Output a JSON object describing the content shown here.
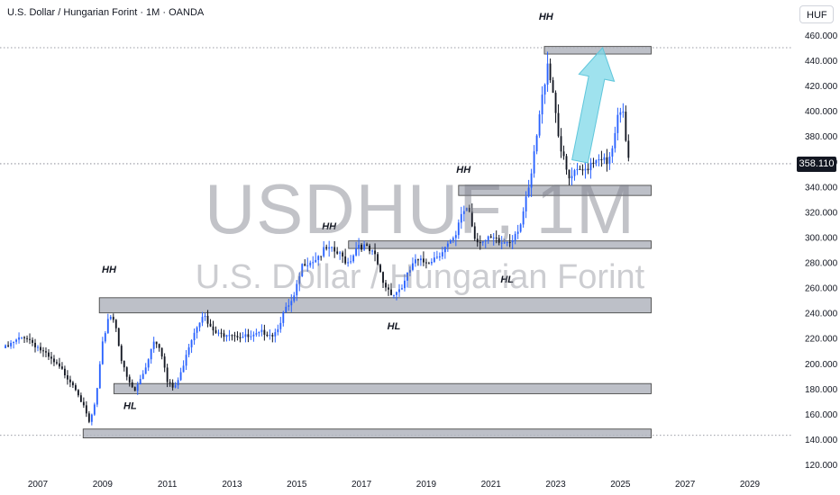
{
  "header": {
    "title": "U.S. Dollar / Hungarian Forint · 1M · OANDA",
    "currency": "HUF"
  },
  "watermark": {
    "symbol": "USDHUF, 1M",
    "name": "U.S. Dollar / Hungarian Forint"
  },
  "price_label": "358.110",
  "colors": {
    "up": "#2962ff",
    "down": "#131722",
    "zone_fill": "#b2b5be",
    "zone_stroke": "#4a4a4a",
    "arrow": "#7fd8e8"
  },
  "chart_data": {
    "type": "candlestick",
    "title": "U.S. Dollar / Hungarian Forint · 1M · OANDA",
    "xlabel": "",
    "ylabel": "",
    "x_ticks": [
      "2007",
      "2009",
      "2011",
      "2013",
      "2015",
      "2017",
      "2019",
      "2021",
      "2023",
      "2025",
      "2027",
      "2029"
    ],
    "y_ticks": [
      "460.000",
      "440.000",
      "420.000",
      "400.000",
      "380.000",
      "360.000",
      "340.000",
      "320.000",
      "300.000",
      "280.000",
      "260.000",
      "240.000",
      "220.000",
      "200.000",
      "180.000",
      "160.000",
      "140.000",
      "120.000"
    ],
    "ylim": [
      114,
      468
    ],
    "xlim": [
      2005.9,
      2030.1
    ],
    "last_price": 358.11,
    "dotted_levels": [
      450,
      358.11,
      143
    ],
    "anchor_path": [
      [
        2006.0,
        212
      ],
      [
        2006.6,
        222
      ],
      [
        2007.0,
        213
      ],
      [
        2007.3,
        205
      ],
      [
        2007.8,
        193
      ],
      [
        2008.2,
        180
      ],
      [
        2008.6,
        152
      ],
      [
        2008.8,
        172
      ],
      [
        2009.0,
        215
      ],
      [
        2009.2,
        240
      ],
      [
        2009.4,
        232
      ],
      [
        2009.6,
        200
      ],
      [
        2009.8,
        185
      ],
      [
        2010.0,
        178
      ],
      [
        2010.3,
        195
      ],
      [
        2010.6,
        220
      ],
      [
        2010.8,
        212
      ],
      [
        2011.0,
        185
      ],
      [
        2011.2,
        180
      ],
      [
        2011.4,
        190
      ],
      [
        2011.6,
        210
      ],
      [
        2011.9,
        230
      ],
      [
        2012.1,
        240
      ],
      [
        2012.3,
        228
      ],
      [
        2012.6,
        222
      ],
      [
        2012.9,
        225
      ],
      [
        2013.2,
        222
      ],
      [
        2013.6,
        220
      ],
      [
        2014.0,
        225
      ],
      [
        2014.3,
        223
      ],
      [
        2014.6,
        240
      ],
      [
        2014.9,
        250
      ],
      [
        2015.2,
        280
      ],
      [
        2015.5,
        282
      ],
      [
        2015.9,
        290
      ],
      [
        2016.2,
        288
      ],
      [
        2016.6,
        280
      ],
      [
        2016.9,
        295
      ],
      [
        2017.1,
        292
      ],
      [
        2017.4,
        285
      ],
      [
        2017.7,
        262
      ],
      [
        2018.0,
        255
      ],
      [
        2018.3,
        262
      ],
      [
        2018.6,
        280
      ],
      [
        2018.9,
        280
      ],
      [
        2019.2,
        283
      ],
      [
        2019.6,
        292
      ],
      [
        2019.9,
        298
      ],
      [
        2020.1,
        320
      ],
      [
        2020.3,
        325
      ],
      [
        2020.5,
        300
      ],
      [
        2020.8,
        296
      ],
      [
        2021.0,
        298
      ],
      [
        2021.3,
        295
      ],
      [
        2021.6,
        298
      ],
      [
        2021.9,
        310
      ],
      [
        2022.2,
        340
      ],
      [
        2022.5,
        395
      ],
      [
        2022.75,
        440
      ],
      [
        2022.95,
        410
      ],
      [
        2023.15,
        370
      ],
      [
        2023.4,
        345
      ],
      [
        2023.6,
        350
      ],
      [
        2023.85,
        352
      ],
      [
        2024.1,
        360
      ],
      [
        2024.4,
        365
      ],
      [
        2024.6,
        355
      ],
      [
        2024.8,
        375
      ],
      [
        2024.95,
        398
      ],
      [
        2025.1,
        395
      ],
      [
        2025.2,
        370
      ],
      [
        2025.3,
        358
      ]
    ],
    "zones": [
      {
        "x0": 2008.4,
        "x1": 2025.95,
        "y0": 141,
        "y1": 148
      },
      {
        "x0": 2009.35,
        "x1": 2025.95,
        "y0": 176,
        "y1": 184
      },
      {
        "x0": 2008.9,
        "x1": 2025.95,
        "y0": 240,
        "y1": 252
      },
      {
        "x0": 2016.6,
        "x1": 2025.95,
        "y0": 291,
        "y1": 297
      },
      {
        "x0": 2020.0,
        "x1": 2025.95,
        "y0": 333,
        "y1": 341
      },
      {
        "x0": 2022.65,
        "x1": 2025.95,
        "y0": 445,
        "y1": 451
      }
    ],
    "annotations": [
      {
        "text": "HH",
        "x": 2009.2,
        "y": 272
      },
      {
        "text": "HL",
        "x": 2009.85,
        "y": 164
      },
      {
        "text": "HH",
        "x": 2016.0,
        "y": 306
      },
      {
        "text": "HL",
        "x": 2018.0,
        "y": 227
      },
      {
        "text": "HH",
        "x": 2020.15,
        "y": 351
      },
      {
        "text": "HL",
        "x": 2021.5,
        "y": 264
      },
      {
        "text": "HH",
        "x": 2022.7,
        "y": 472
      }
    ],
    "arrow": {
      "from": [
        2023.75,
        360
      ],
      "to": [
        2024.45,
        450
      ]
    }
  }
}
